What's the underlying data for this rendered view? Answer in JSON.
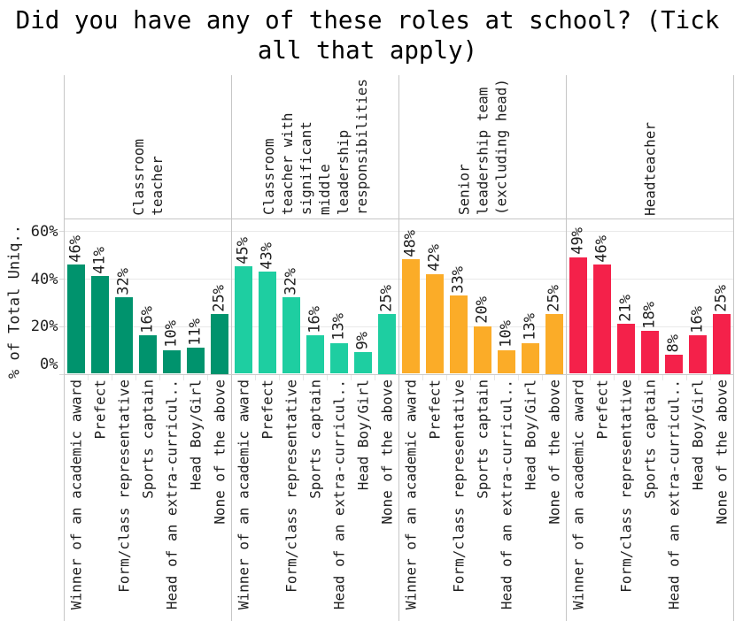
{
  "title": "Did you have any of these roles at school? (Tick\nall that apply)",
  "y_axis": {
    "title": "% of Total Uniq..",
    "tick_labels": [
      "60%",
      "40%",
      "20%",
      "0%"
    ]
  },
  "categories": [
    "Winner of an academic award",
    "Prefect",
    "Form/class representative",
    "Sports captain",
    "Head of an extra-curricul..",
    "Head Boy/Girl",
    "None of the above"
  ],
  "panels": [
    {
      "header": "Classroom\nteacher",
      "color": "#00936d",
      "values": [
        46,
        41,
        32,
        16,
        10,
        11,
        25
      ],
      "labels": [
        "46%",
        "41%",
        "32%",
        "16%",
        "10%",
        "11%",
        "25%"
      ]
    },
    {
      "header": "Classroom\nteacher with\nsignificant\nmiddle\nleadership\nresponsibilities",
      "color": "#1ecea1",
      "values": [
        45,
        43,
        32,
        16,
        13,
        9,
        25
      ],
      "labels": [
        "45%",
        "43%",
        "32%",
        "16%",
        "13%",
        "9%",
        "25%"
      ]
    },
    {
      "header": "Senior\nleadership team\n(excluding head)",
      "color": "#fbac28",
      "values": [
        48,
        42,
        33,
        20,
        10,
        13,
        25
      ],
      "labels": [
        "48%",
        "42%",
        "33%",
        "20%",
        "10%",
        "13%",
        "25%"
      ]
    },
    {
      "header": "Headteacher",
      "color": "#f4214a",
      "values": [
        49,
        46,
        21,
        18,
        8,
        16,
        25
      ],
      "labels": [
        "49%",
        "46%",
        "21%",
        "18%",
        "8%",
        "16%",
        "25%"
      ]
    }
  ],
  "chart_data": {
    "type": "bar",
    "title": "Did you have any of these roles at school? (Tick all that apply)",
    "ylabel": "% of Total Uniq..",
    "xlabel": "",
    "ylim": [
      0,
      65
    ],
    "y_ticks": [
      "0%",
      "20%",
      "40%",
      "60%"
    ],
    "grid": "horizontal",
    "legend": "none",
    "facets": [
      "Classroom teacher",
      "Classroom teacher with significant middle leadership responsibilities",
      "Senior leadership team (excluding head)",
      "Headteacher"
    ],
    "categories": [
      "Winner of an academic award",
      "Prefect",
      "Form/class representative",
      "Sports captain",
      "Head of an extra-curricul..",
      "Head Boy/Girl",
      "None of the above"
    ],
    "series": [
      {
        "name": "Classroom teacher",
        "color": "#00936d",
        "values": [
          46,
          41,
          32,
          16,
          10,
          11,
          25
        ]
      },
      {
        "name": "Classroom teacher with significant middle leadership responsibilities",
        "color": "#1ecea1",
        "values": [
          45,
          43,
          32,
          16,
          13,
          9,
          25
        ]
      },
      {
        "name": "Senior leadership team (excluding head)",
        "color": "#fbac28",
        "values": [
          48,
          42,
          33,
          20,
          10,
          13,
          25
        ]
      },
      {
        "name": "Headteacher",
        "color": "#f4214a",
        "values": [
          49,
          46,
          21,
          18,
          8,
          16,
          25
        ]
      }
    ]
  }
}
